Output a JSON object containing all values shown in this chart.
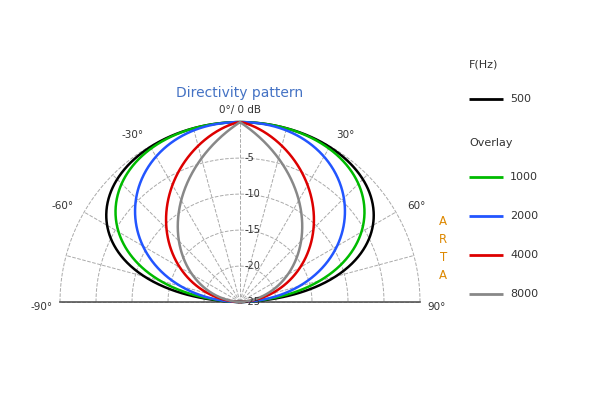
{
  "title": "Directivity pattern",
  "title_color": "#4472c4",
  "background_color": "#ffffff",
  "legend_title1": "F(Hz)",
  "legend_entry1": "500",
  "legend_title2": "Overlay",
  "legend_entries": [
    "1000",
    "2000",
    "4000",
    "8000"
  ],
  "colors": {
    "500": "#000000",
    "1000": "#00bb00",
    "2000": "#2255ff",
    "4000": "#dd0000",
    "8000": "#888888"
  },
  "db_rings": [
    0,
    -5,
    -10,
    -15,
    -20,
    -25
  ],
  "db_min": -25,
  "db_max": 0,
  "arta_color": "#dd8800",
  "watermark_color": "#4472c4",
  "grid_color": "#aaaaaa",
  "axis_color": "#555555",
  "label_color": "#333333"
}
